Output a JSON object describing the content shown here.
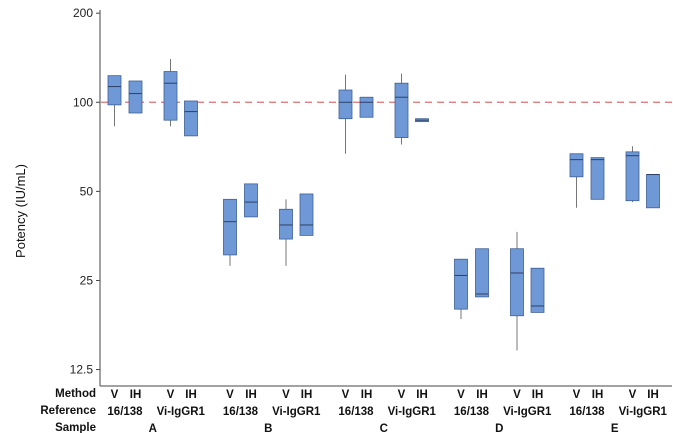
{
  "chart_data": {
    "type": "boxplot",
    "ylabel": "Potency (IU/mL)",
    "yscale": "log",
    "ylim": [
      11,
      205
    ],
    "yticks": [
      12.5,
      25,
      50,
      100,
      200
    ],
    "ytick_labels": [
      "12.5",
      "25",
      "50",
      "100",
      "200"
    ],
    "reference_line": {
      "value": 100,
      "style": "dashed",
      "color": "#e07070"
    },
    "box_color": "#6f99d6",
    "box_edge_color": "#3e5f96",
    "row_labels": [
      "Method",
      "Reference",
      "Sample"
    ],
    "samples": [
      {
        "name": "A",
        "references": [
          {
            "name": "16/138",
            "boxes": [
              {
                "method": "V",
                "min": 83,
                "q1": 98,
                "median": 113,
                "q3": 123,
                "max": 123
              },
              {
                "method": "IH",
                "min": 92,
                "q1": 92,
                "median": 107,
                "q3": 118,
                "max": 118
              }
            ]
          },
          {
            "name": "Vi-IgGR1",
            "boxes": [
              {
                "method": "V",
                "min": 83,
                "q1": 87,
                "median": 116,
                "q3": 127,
                "max": 140
              },
              {
                "method": "IH",
                "min": 77,
                "q1": 77,
                "median": 93,
                "q3": 101,
                "max": 101
              }
            ]
          }
        ]
      },
      {
        "name": "B",
        "references": [
          {
            "name": "16/138",
            "boxes": [
              {
                "method": "V",
                "min": 28,
                "q1": 30.5,
                "median": 39.5,
                "q3": 47,
                "max": 47
              },
              {
                "method": "IH",
                "min": 41,
                "q1": 41,
                "median": 46,
                "q3": 53,
                "max": 53
              }
            ]
          },
          {
            "name": "Vi-IgGR1",
            "boxes": [
              {
                "method": "V",
                "min": 28,
                "q1": 34.5,
                "median": 38.5,
                "q3": 43.5,
                "max": 47
              },
              {
                "method": "IH",
                "min": 35.5,
                "q1": 35.5,
                "median": 38.5,
                "q3": 49,
                "max": 49
              }
            ]
          }
        ]
      },
      {
        "name": "C",
        "references": [
          {
            "name": "16/138",
            "boxes": [
              {
                "method": "V",
                "min": 67,
                "q1": 88,
                "median": 100,
                "q3": 110,
                "max": 124
              },
              {
                "method": "IH",
                "min": 89,
                "q1": 89,
                "median": 100,
                "q3": 104,
                "max": 104
              }
            ]
          },
          {
            "name": "Vi-IgGR1",
            "boxes": [
              {
                "method": "V",
                "min": 72,
                "q1": 76,
                "median": 104,
                "q3": 116,
                "max": 125
              },
              {
                "method": "IH",
                "min": 86,
                "q1": 86,
                "median": 87,
                "q3": 88,
                "max": 88
              }
            ]
          }
        ]
      },
      {
        "name": "D",
        "references": [
          {
            "name": "16/138",
            "boxes": [
              {
                "method": "V",
                "min": 18.5,
                "q1": 20,
                "median": 26,
                "q3": 29.5,
                "max": 29.5
              },
              {
                "method": "IH",
                "min": 22,
                "q1": 22,
                "median": 22.5,
                "q3": 32,
                "max": 32
              }
            ]
          },
          {
            "name": "Vi-IgGR1",
            "boxes": [
              {
                "method": "V",
                "min": 14.5,
                "q1": 19,
                "median": 26.5,
                "q3": 32,
                "max": 36.5
              },
              {
                "method": "IH",
                "min": 19.5,
                "q1": 19.5,
                "median": 20.5,
                "q3": 27.5,
                "max": 27.5
              }
            ]
          }
        ]
      },
      {
        "name": "E",
        "references": [
          {
            "name": "16/138",
            "boxes": [
              {
                "method": "V",
                "min": 44,
                "q1": 56,
                "median": 64,
                "q3": 67,
                "max": 67
              },
              {
                "method": "IH",
                "min": 47,
                "q1": 47,
                "median": 64,
                "q3": 65,
                "max": 65
              }
            ]
          },
          {
            "name": "Vi-IgGR1",
            "boxes": [
              {
                "method": "V",
                "min": 46,
                "q1": 46.5,
                "median": 66,
                "q3": 68,
                "max": 71
              },
              {
                "method": "IH",
                "min": 44,
                "q1": 44,
                "median": 57,
                "q3": 57,
                "max": 57
              }
            ]
          }
        ]
      }
    ]
  }
}
